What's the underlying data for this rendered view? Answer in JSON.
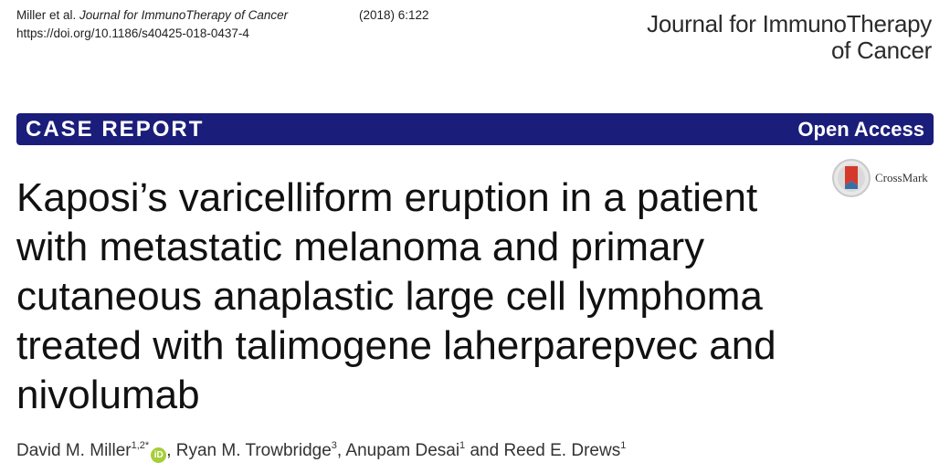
{
  "citation": {
    "authors": "Miller et al.",
    "journal": "Journal for ImmunoTherapy of Cancer",
    "volume": "(2018) 6:122",
    "doi": "https://doi.org/10.1186/s40425-018-0437-4"
  },
  "journal_logo": {
    "line1": "Journal for ImmunoTherapy",
    "line2": "of Cancer"
  },
  "banner": {
    "article_type": "CASE REPORT",
    "access": "Open Access",
    "color": "#1b1d7a"
  },
  "crossmark": {
    "label": "CrossMark",
    "icon": "crossmark-icon"
  },
  "title": "Kaposi’s varicelliform eruption in a patient with metastatic melanoma and primary cutaneous anaplastic large cell lymphoma treated with talimogene laherparepvec and nivolumab",
  "authors": [
    {
      "name": "David M. Miller",
      "affil": "1,2*",
      "orcid": true,
      "sep": ", "
    },
    {
      "name": "Ryan M. Trowbridge",
      "affil": "3",
      "orcid": false,
      "sep": ", "
    },
    {
      "name": "Anupam Desai",
      "affil": "1",
      "orcid": false,
      "sep": " and "
    },
    {
      "name": "Reed E. Drews",
      "affil": "1",
      "orcid": false,
      "sep": ""
    }
  ],
  "orcid_icon_text": "iD"
}
